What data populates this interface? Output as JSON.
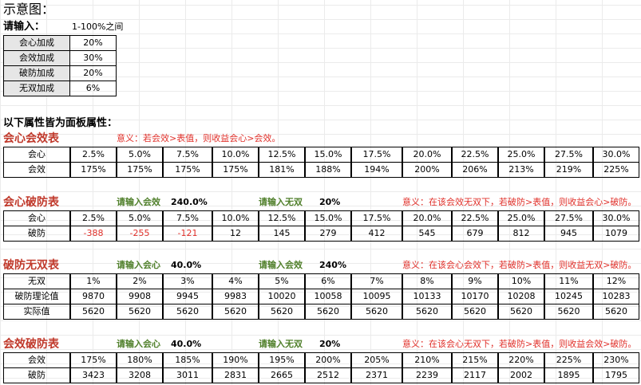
{
  "title": "示意图：",
  "input_section": {
    "label": "请输入：",
    "hint": "1-100%之间",
    "rows": [
      {
        "name": "会心加成",
        "value": "20%"
      },
      {
        "name": "会效加成",
        "value": "30%"
      },
      {
        "name": "破防加成",
        "value": "20%"
      },
      {
        "name": "无双加成",
        "value": "6%"
      }
    ]
  },
  "panel_heading": "以下属性皆为面板属性：",
  "tables": [
    {
      "title": "会心会效表",
      "note": "意义：若会效>表值，则收益会心>会效。",
      "rows": [
        {
          "label": "会心",
          "values": [
            "2.5%",
            "5.0%",
            "7.5%",
            "10.0%",
            "12.5%",
            "15.0%",
            "17.5%",
            "20.0%",
            "22.5%",
            "25.0%",
            "27.5%",
            "30.0%"
          ]
        },
        {
          "label": "会效",
          "values": [
            "175%",
            "175%",
            "175%",
            "175%",
            "181%",
            "188%",
            "194%",
            "200%",
            "206%",
            "213%",
            "219%",
            "225%"
          ]
        }
      ]
    },
    {
      "title": "会心破防表",
      "in1_label": "请输入会效",
      "in1_value": "240.0%",
      "in2_label": "请输入无双",
      "in2_value": "20%",
      "note": "意义：在该会效无双下，若破防>表值，则收益会心>破防。",
      "rows": [
        {
          "label": "会心",
          "values": [
            "2.5%",
            "5.0%",
            "7.5%",
            "10.0%",
            "12.5%",
            "15.0%",
            "17.5%",
            "20.0%",
            "22.5%",
            "25.0%",
            "27.5%",
            "30.0%"
          ]
        },
        {
          "label": "破防",
          "values": [
            "-388",
            "-255",
            "-121",
            "12",
            "145",
            "279",
            "412",
            "545",
            "679",
            "812",
            "945",
            "1079"
          ]
        }
      ]
    },
    {
      "title": "破防无双表",
      "in1_label": "请输入会心",
      "in1_value": "40.0%",
      "in2_label": "请输入会效",
      "in2_value": "240%",
      "note": "意义：在该会心会效下，若破防>表值，则收益无双>破防。",
      "rows": [
        {
          "label": "无双",
          "values": [
            "1%",
            "2%",
            "3%",
            "4%",
            "5%",
            "6%",
            "7%",
            "8%",
            "9%",
            "10%",
            "11%",
            "12%"
          ]
        },
        {
          "label": "破防理论值",
          "values": [
            "9870",
            "9908",
            "9945",
            "9983",
            "10020",
            "10058",
            "10095",
            "10133",
            "10170",
            "10208",
            "10245",
            "10283"
          ]
        },
        {
          "label": "实际值",
          "values": [
            "5620",
            "5620",
            "5620",
            "5620",
            "5620",
            "5620",
            "5620",
            "5620",
            "5620",
            "5620",
            "5620",
            "5620"
          ]
        }
      ]
    },
    {
      "title": "会效破防表",
      "in1_label": "请输入会心",
      "in1_value": "40.0%",
      "in2_label": "请输入无双",
      "in2_value": "20%",
      "note": "意义：在该会心无双下，若破防>表值，则收益会效>破防。",
      "rows": [
        {
          "label": "会效",
          "values": [
            "175%",
            "180%",
            "185%",
            "190%",
            "195%",
            "200%",
            "205%",
            "210%",
            "215%",
            "220%",
            "225%",
            "230%"
          ]
        },
        {
          "label": "破防",
          "values": [
            "3423",
            "3208",
            "3011",
            "2831",
            "2665",
            "2512",
            "2371",
            "2239",
            "2117",
            "2002",
            "1895",
            "1795"
          ]
        }
      ]
    }
  ]
}
